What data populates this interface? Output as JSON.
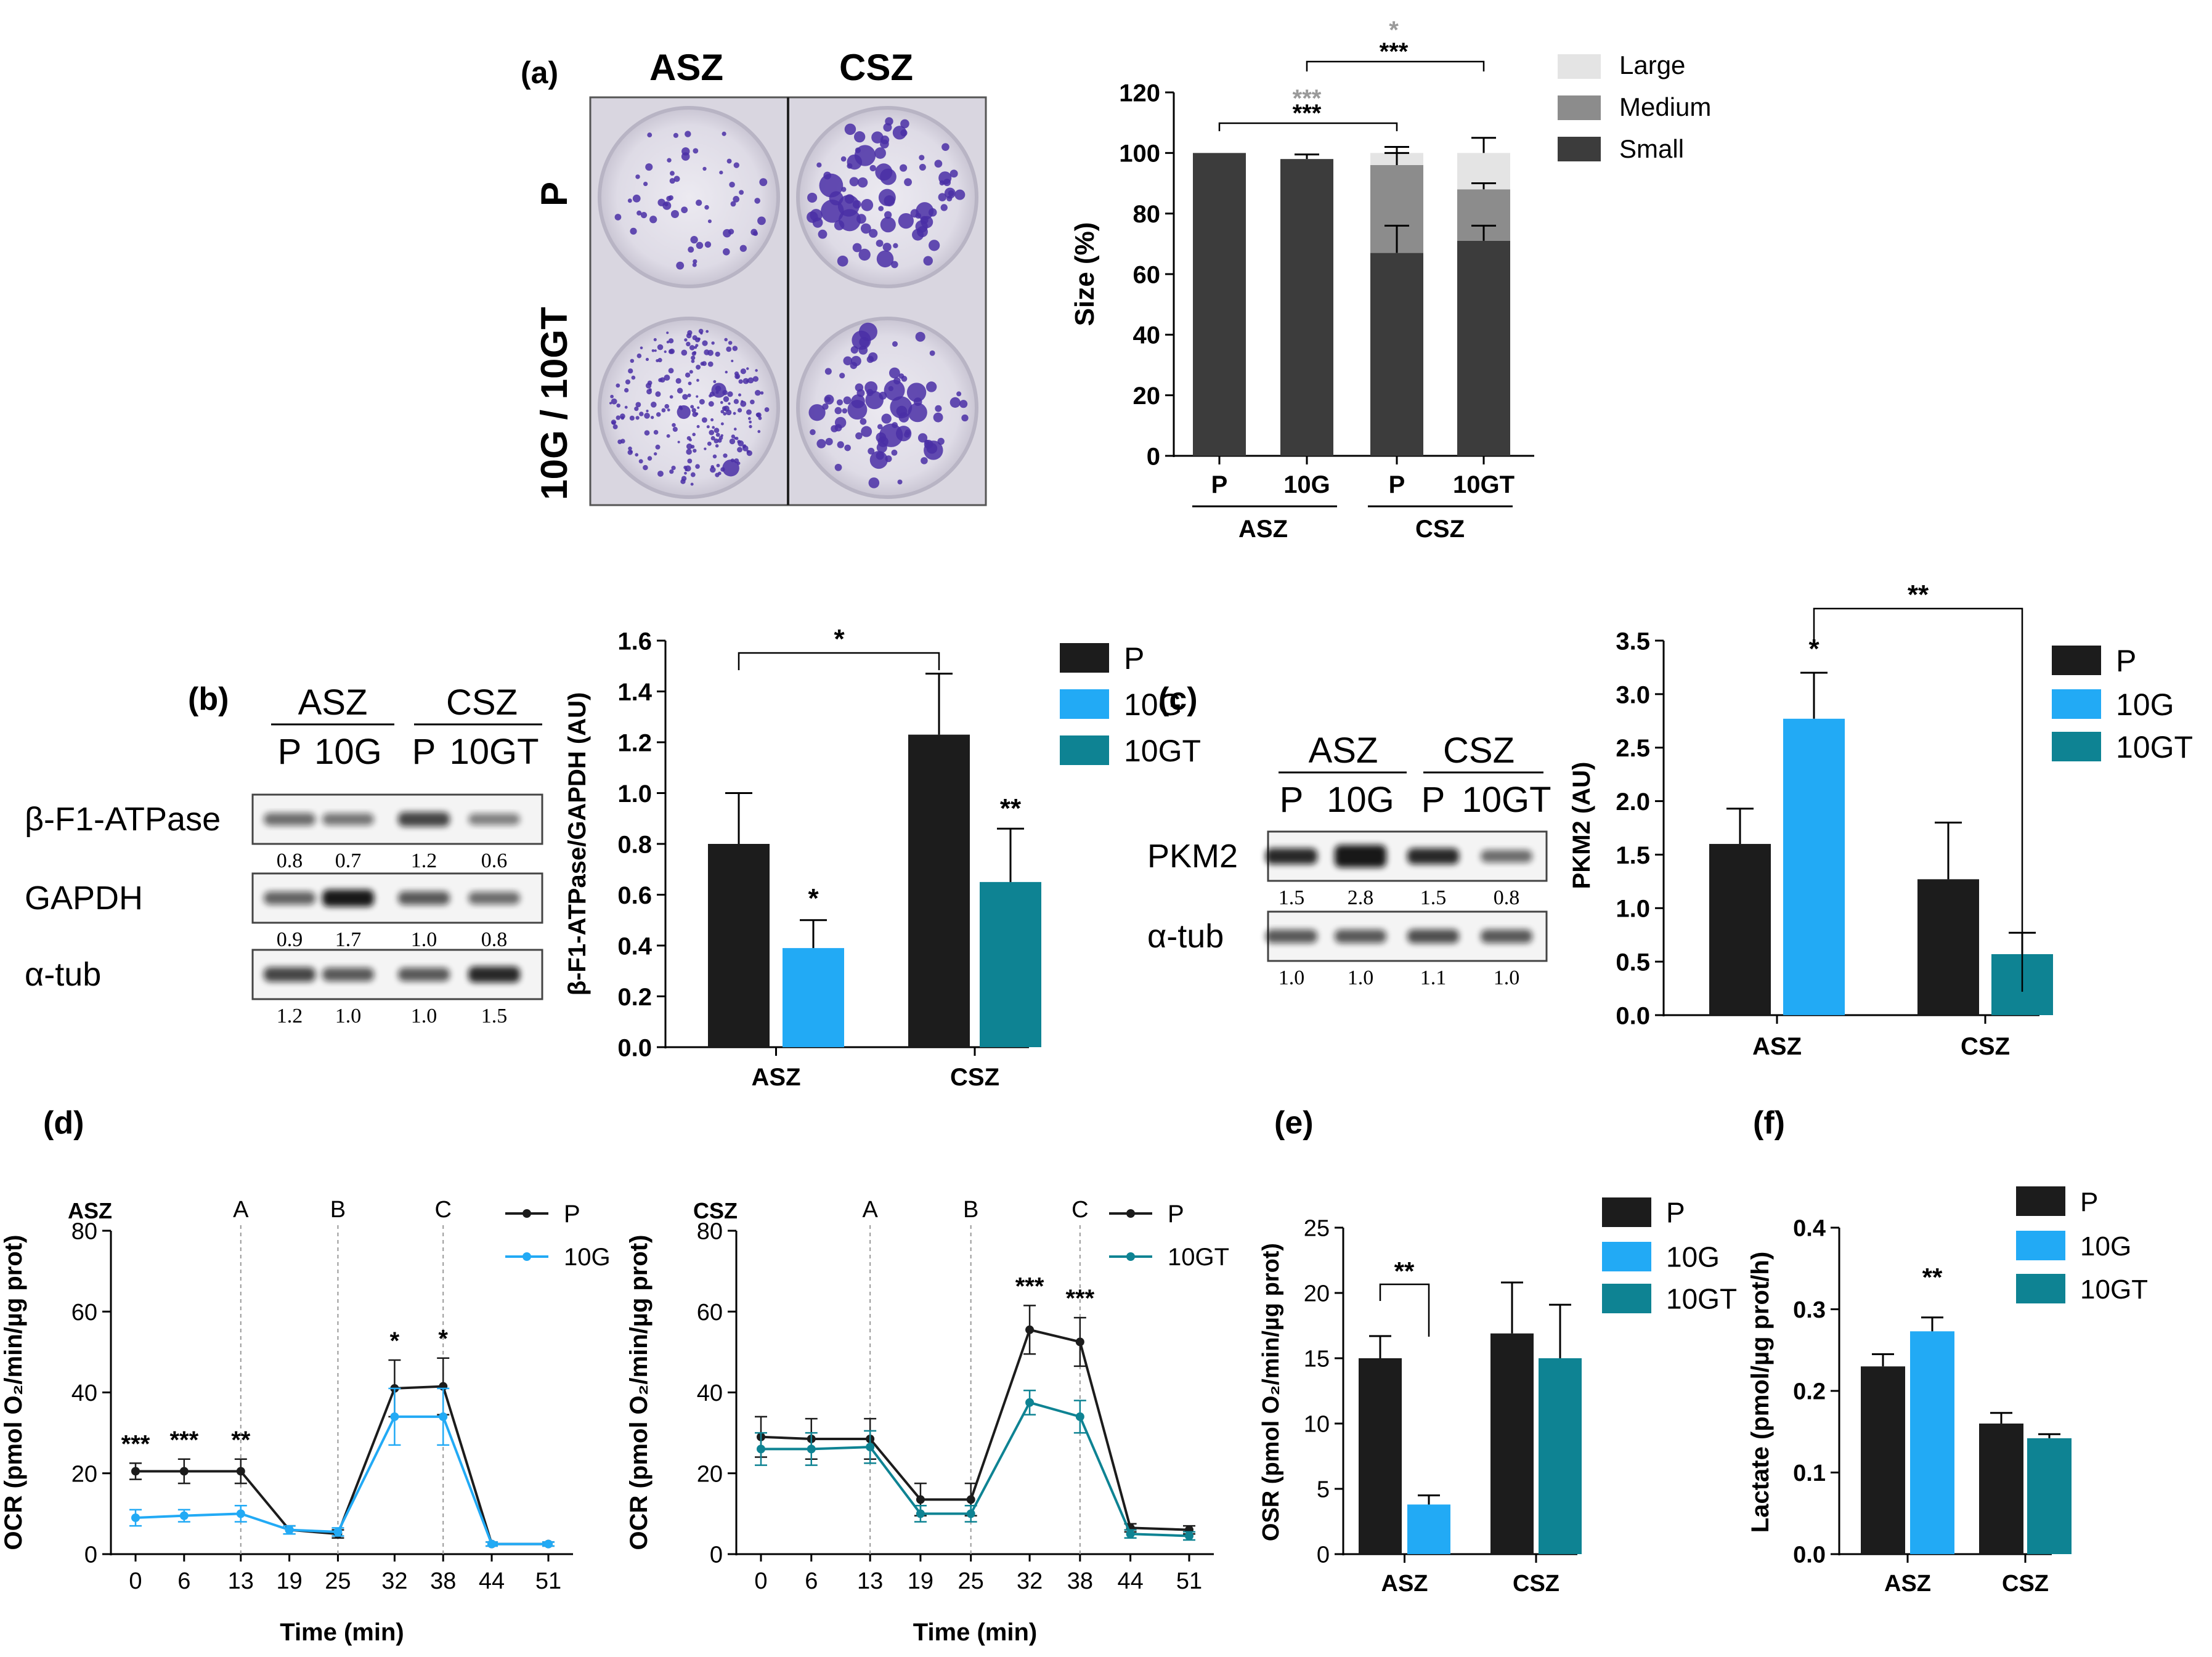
{
  "colors": {
    "black_bar": "#1c1c1c",
    "light_blue": "#22aaf5",
    "teal": "#0e8393",
    "small_gray": "#3c3c3c",
    "medium_gray": "#8c8c8c",
    "large_gray": "#e4e4e4",
    "stat_gray": "#9a9a9a",
    "plate_bg": "#e3e1ea",
    "colony": "#4a2fa6"
  },
  "panel_a": {
    "label": "(a)",
    "plate": {
      "col_labels": [
        "ASZ",
        "CSZ"
      ],
      "row_labels": [
        "P",
        "10G / 10GT"
      ]
    },
    "stats": {
      "gray_1": "***",
      "black_1": "***",
      "gray_2": "*",
      "black_2": "***"
    }
  },
  "panel_b": {
    "label": "(b)",
    "blot": {
      "groups": [
        "ASZ",
        "CSZ"
      ],
      "lanes": [
        "P",
        "10G",
        "P",
        "10GT"
      ],
      "rows": [
        {
          "name": "β-F1-ATPase",
          "values": [
            "0.8",
            "0.7",
            "1.2",
            "0.6"
          ]
        },
        {
          "name": "GAPDH",
          "values": [
            "0.9",
            "1.7",
            "1.0",
            "0.8"
          ]
        },
        {
          "name": "α-tub",
          "values": [
            "1.2",
            "1.0",
            "1.0",
            "1.5"
          ]
        }
      ]
    },
    "stats": {
      "bracket": "*",
      "g10": "*",
      "g10gt": "**"
    }
  },
  "panel_c": {
    "label": "(c)",
    "blot": {
      "groups": [
        "ASZ",
        "CSZ"
      ],
      "lanes": [
        "P",
        "10G",
        "P",
        "10GT"
      ],
      "rows": [
        {
          "name": "PKM2",
          "values": [
            "1.5",
            "2.8",
            "1.5",
            "0.8"
          ]
        },
        {
          "name": "α-tub",
          "values": [
            "1.0",
            "1.0",
            "1.1",
            "1.0"
          ]
        }
      ]
    },
    "stats": {
      "bracket": "**",
      "g10": "*"
    }
  },
  "panel_d": {
    "label": "(d)",
    "bases": [
      "A",
      "B",
      "C"
    ],
    "star_asz": [
      "***",
      "***",
      "**",
      "*",
      "*"
    ],
    "star_csz": [
      "***",
      "***"
    ]
  },
  "panel_e": {
    "label": "(e)",
    "stats": {
      "bracket": "**"
    }
  },
  "panel_f": {
    "label": "(f)",
    "stats": {
      "g10": "**"
    }
  },
  "chart_data": [
    {
      "id": "a",
      "type": "bar",
      "stacked": true,
      "categories": [
        "P",
        "10G",
        "P",
        "10GT"
      ],
      "groups": [
        "ASZ",
        "CSZ"
      ],
      "series": [
        {
          "name": "Small",
          "values": [
            100,
            98,
            67,
            71
          ],
          "errors": [
            0,
            1.5,
            9,
            5
          ]
        },
        {
          "name": "Medium",
          "values": [
            0,
            0,
            29,
            17
          ],
          "errors": [
            0,
            0,
            4,
            2
          ]
        },
        {
          "name": "Large",
          "values": [
            0,
            0,
            4,
            12
          ],
          "errors": [
            0,
            0,
            2,
            5
          ]
        }
      ],
      "ylabel": "Size (%)",
      "ylim": [
        0,
        120
      ],
      "yticks": [
        0,
        20,
        40,
        60,
        80,
        100,
        120
      ],
      "legend": [
        "Large",
        "Medium",
        "Small"
      ]
    },
    {
      "id": "b",
      "type": "bar",
      "groups": [
        "ASZ",
        "CSZ"
      ],
      "series": [
        {
          "name": "P",
          "values": [
            0.8,
            1.23
          ],
          "errors": [
            0.2,
            0.24
          ]
        },
        {
          "name": "10G",
          "values": [
            0.39,
            null
          ],
          "errors": [
            0.11,
            null
          ]
        },
        {
          "name": "10GT",
          "values": [
            null,
            0.65
          ],
          "errors": [
            null,
            0.21
          ]
        }
      ],
      "ylabel": "β-F1-ATPase/GAPDH (AU)",
      "ylim": [
        0,
        1.6
      ],
      "yticks": [
        "0.0",
        "0.2",
        "0.4",
        "0.6",
        "0.8",
        "1.0",
        "1.2",
        "1.4",
        "1.6"
      ]
    },
    {
      "id": "c",
      "type": "bar",
      "groups": [
        "ASZ",
        "CSZ"
      ],
      "series": [
        {
          "name": "P",
          "values": [
            1.6,
            1.27
          ],
          "errors": [
            0.33,
            0.53
          ]
        },
        {
          "name": "10G",
          "values": [
            2.77,
            null
          ],
          "errors": [
            0.43,
            null
          ]
        },
        {
          "name": "10GT",
          "values": [
            null,
            0.57
          ],
          "errors": [
            null,
            0.2
          ]
        }
      ],
      "ylabel": "PKM2 (AU)",
      "ylim": [
        0,
        3.5
      ],
      "yticks": [
        "0.0",
        "0.5",
        "1.0",
        "1.5",
        "2.0",
        "2.5",
        "3.0",
        "3.5"
      ]
    },
    {
      "id": "d1",
      "type": "line",
      "title": "ASZ",
      "x": [
        0,
        6,
        13,
        19,
        25,
        32,
        38,
        44,
        51
      ],
      "series": [
        {
          "name": "P",
          "values": [
            20.5,
            20.5,
            20.5,
            6,
            5,
            41,
            41.5,
            2.5,
            2.5
          ],
          "errors": [
            2,
            3,
            3,
            1,
            1,
            7,
            7,
            0.5,
            0.5
          ]
        },
        {
          "name": "10G",
          "values": [
            9,
            9.5,
            10,
            6,
            5.5,
            34,
            34,
            2.5,
            2.5
          ],
          "errors": [
            2,
            1.5,
            2,
            1,
            1,
            7,
            7,
            0.5,
            0.5
          ]
        }
      ],
      "xlabel": "Time (min)",
      "ylabel": "OCR (pmol O₂/min/µg prot)",
      "ylim": [
        0,
        80
      ],
      "yticks": [
        0,
        20,
        40,
        60,
        80
      ]
    },
    {
      "id": "d2",
      "type": "line",
      "title": "CSZ",
      "x": [
        0,
        6,
        13,
        19,
        25,
        32,
        38,
        44,
        51
      ],
      "series": [
        {
          "name": "P",
          "values": [
            29,
            28.5,
            28.5,
            13.5,
            13.5,
            55.5,
            52.5,
            6.5,
            6
          ],
          "errors": [
            5,
            5,
            5,
            4,
            4,
            6,
            6,
            1,
            1
          ]
        },
        {
          "name": "10GT",
          "values": [
            26,
            26,
            26.5,
            10,
            10,
            37.5,
            34,
            5,
            4.5
          ],
          "errors": [
            4,
            4,
            4,
            2,
            2,
            3,
            4,
            1,
            1
          ]
        }
      ],
      "xlabel": "Time (min)",
      "ylabel": "OCR (pmol O₂/min/µg prot)",
      "ylim": [
        0,
        80
      ],
      "yticks": [
        0,
        20,
        40,
        60,
        80
      ]
    },
    {
      "id": "e",
      "type": "bar",
      "groups": [
        "ASZ",
        "CSZ"
      ],
      "series": [
        {
          "name": "P",
          "values": [
            15,
            16.9
          ],
          "errors": [
            1.7,
            3.9
          ]
        },
        {
          "name": "10G",
          "values": [
            3.8,
            null
          ],
          "errors": [
            0.7,
            null
          ]
        },
        {
          "name": "10GT",
          "values": [
            null,
            15
          ],
          "errors": [
            null,
            4.1
          ]
        }
      ],
      "ylabel": "OSR (pmol O₂/min/µg prot)",
      "ylim": [
        0,
        25
      ],
      "yticks": [
        0,
        5,
        10,
        15,
        20,
        25
      ]
    },
    {
      "id": "f",
      "type": "bar",
      "groups": [
        "ASZ",
        "CSZ"
      ],
      "series": [
        {
          "name": "P",
          "values": [
            0.23,
            0.16
          ],
          "errors": [
            0.015,
            0.013
          ]
        },
        {
          "name": "10G",
          "values": [
            0.273,
            null
          ],
          "errors": [
            0.017,
            null
          ]
        },
        {
          "name": "10GT",
          "values": [
            null,
            0.142
          ],
          "errors": [
            null,
            0.005
          ]
        }
      ],
      "ylabel": "Lactate (pmol/µg prot/h)",
      "ylim": [
        0,
        0.4
      ],
      "yticks": [
        "0.0",
        "0.1",
        "0.2",
        "0.3",
        "0.4"
      ]
    }
  ]
}
